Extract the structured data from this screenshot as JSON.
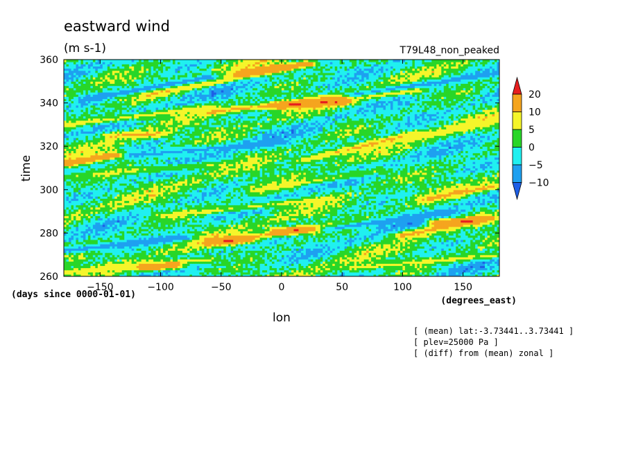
{
  "chart_data": {
    "type": "heatmap",
    "title": "eastward wind",
    "subtitle": "(m s-1)",
    "run_label": "T79L48_non_peaked",
    "xlabel": "lon",
    "x_units": "(degrees_east)",
    "ylabel": "time",
    "y_units": "(days since 0000-01-01)",
    "xlim": [
      -180,
      180
    ],
    "ylim": [
      260,
      360
    ],
    "x_ticks": [
      -150,
      -100,
      -50,
      0,
      50,
      100,
      150
    ],
    "y_ticks": [
      260,
      280,
      300,
      320,
      340,
      360
    ],
    "grid": false,
    "legend_position": "right",
    "colorbar": {
      "levels": [
        -10,
        -5,
        0,
        5,
        10,
        20
      ],
      "colors": [
        "#1e5fe6",
        "#1ea0f0",
        "#20f0f0",
        "#28d628",
        "#f5f52a",
        "#f5a51e",
        "#e61e1e"
      ],
      "extend": "both"
    },
    "notes": [
      "[ (mean) lat:-3.73441..3.73441 ]",
      "[ plev=25000 Pa ]",
      "[ (diff) from (mean) zonal ]"
    ],
    "bands": [
      {
        "lon0": -180,
        "t0": 312,
        "lon1": -140,
        "t1": 316,
        "value": 22
      },
      {
        "lon0": -140,
        "t0": 325,
        "lon1": -100,
        "t1": 326,
        "value": 12
      },
      {
        "lon0": -110,
        "t0": 344,
        "lon1": 0,
        "t1": 356,
        "value": 12
      },
      {
        "lon0": -30,
        "t0": 354,
        "lon1": 20,
        "t1": 358,
        "value": 22
      },
      {
        "lon0": -60,
        "t0": 336,
        "lon1": 110,
        "t1": 346,
        "value": 13
      },
      {
        "lon0": 0,
        "t0": 339,
        "lon1": 50,
        "t1": 341,
        "value": 22
      },
      {
        "lon0": -180,
        "t0": 330,
        "lon1": -60,
        "t1": 338,
        "value": 8
      },
      {
        "lon0": 20,
        "t0": 314,
        "lon1": 110,
        "t1": 326,
        "value": 12
      },
      {
        "lon0": 110,
        "t0": 324,
        "lon1": 180,
        "t1": 332,
        "value": 8
      },
      {
        "lon0": -180,
        "t0": 306,
        "lon1": -50,
        "t1": 312,
        "value": 6
      },
      {
        "lon0": -20,
        "t0": 300,
        "lon1": 80,
        "t1": 309,
        "value": 7
      },
      {
        "lon0": 120,
        "t0": 296,
        "lon1": 180,
        "t1": 302,
        "value": 12
      },
      {
        "lon0": -100,
        "t0": 288,
        "lon1": 40,
        "t1": 296,
        "value": 7
      },
      {
        "lon0": -60,
        "t0": 276,
        "lon1": 40,
        "t1": 283,
        "value": 13
      },
      {
        "lon0": -50,
        "t0": 276,
        "lon1": -30,
        "t1": 277,
        "value": 22
      },
      {
        "lon0": 0,
        "t0": 281,
        "lon1": 20,
        "t1": 282,
        "value": 22
      },
      {
        "lon0": 100,
        "t0": 279,
        "lon1": 170,
        "t1": 287,
        "value": 14
      },
      {
        "lon0": 130,
        "t0": 285,
        "lon1": 160,
        "t1": 286,
        "value": 22
      },
      {
        "lon0": -180,
        "t0": 262,
        "lon1": -60,
        "t1": 268,
        "value": 8
      },
      {
        "lon0": -110,
        "t0": 264,
        "lon1": -90,
        "t1": 265,
        "value": 22
      },
      {
        "lon0": 60,
        "t0": 264,
        "lon1": 180,
        "t1": 270,
        "value": 7
      },
      {
        "lon0": -180,
        "t0": 272,
        "lon1": -80,
        "t1": 278,
        "value": -9
      },
      {
        "lon0": -160,
        "t0": 342,
        "lon1": -60,
        "t1": 352,
        "value": -9
      },
      {
        "lon0": 60,
        "t0": 344,
        "lon1": 180,
        "t1": 354,
        "value": -8
      },
      {
        "lon0": 40,
        "t0": 282,
        "lon1": 140,
        "t1": 290,
        "value": -8
      },
      {
        "lon0": -120,
        "t0": 316,
        "lon1": 0,
        "t1": 322,
        "value": -7
      }
    ]
  }
}
